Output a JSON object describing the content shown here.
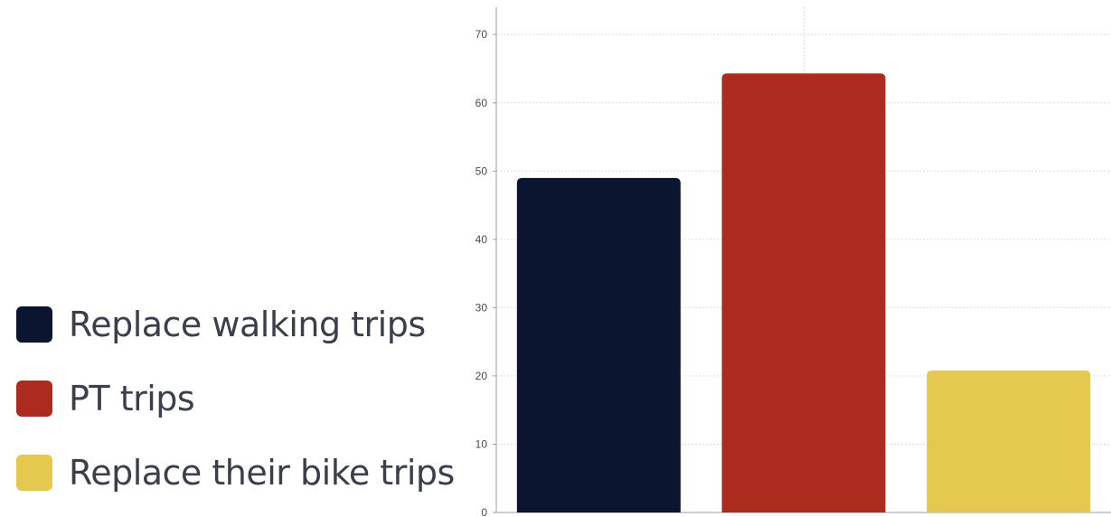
{
  "chart_data": {
    "type": "bar",
    "title": "",
    "xlabel": "",
    "ylabel": "",
    "categories": [
      "Replace walking trips",
      "PT trips",
      "Replace their bike trips"
    ],
    "values": [
      49,
      64.3,
      20.8
    ],
    "colors": [
      "#0b1530",
      "#ad2a1f",
      "#e5c84e"
    ],
    "ylim": [
      0,
      74
    ],
    "yticks": [
      0,
      10,
      20,
      30,
      40,
      50,
      60,
      70
    ],
    "ytick_labels": [
      "0",
      "10",
      "20",
      "30",
      "40",
      "50",
      "60",
      "70"
    ],
    "grid": true,
    "legend_position": "left"
  },
  "legend": {
    "items": [
      {
        "label": "Replace walking trips",
        "color": "#0b1530"
      },
      {
        "label": "PT trips",
        "color": "#ad2a1f"
      },
      {
        "label": "Replace their bike trips",
        "color": "#e5c84e"
      }
    ]
  }
}
